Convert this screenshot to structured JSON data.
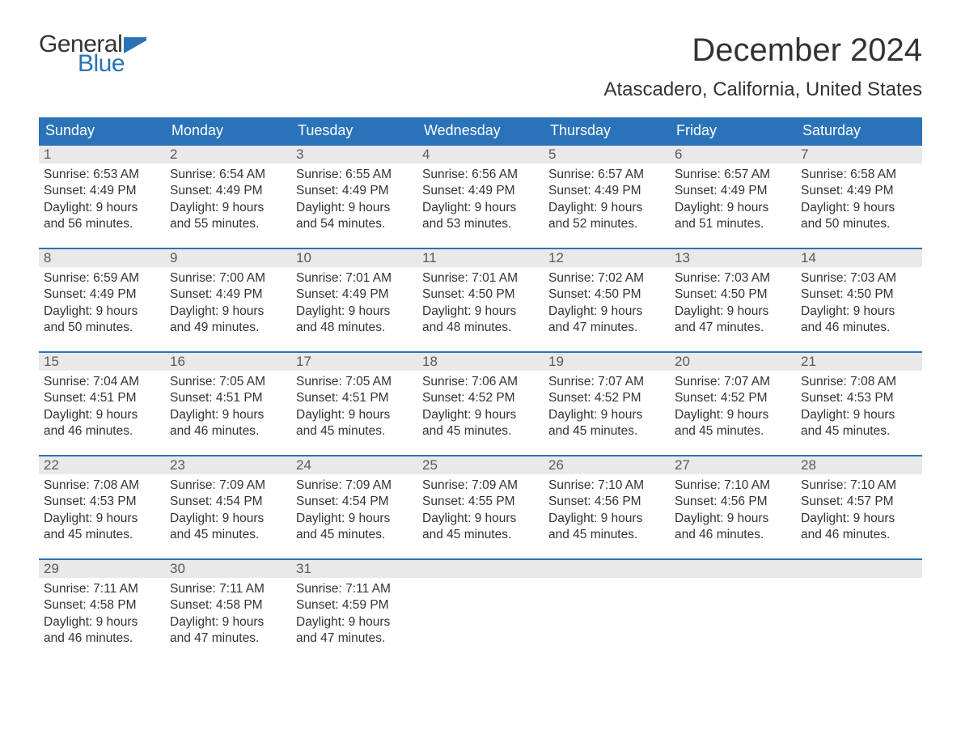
{
  "logo": {
    "word1": "General",
    "word2": "Blue",
    "text_color": "#333333",
    "blue_color": "#2a73b8"
  },
  "title": "December 2024",
  "location": "Atascadero, California, United States",
  "colors": {
    "header_bg": "#2a73b8",
    "header_text": "#ffffff",
    "daynum_bg": "#e9e9e9",
    "daynum_text": "#5a5a5a",
    "border": "#2a73b8",
    "body_text": "#333333",
    "page_bg": "#ffffff"
  },
  "typography": {
    "title_fontsize": 40,
    "location_fontsize": 24,
    "header_fontsize": 18,
    "body_fontsize": 15.5
  },
  "weekdays": [
    "Sunday",
    "Monday",
    "Tuesday",
    "Wednesday",
    "Thursday",
    "Friday",
    "Saturday"
  ],
  "labels": {
    "sunrise": "Sunrise:",
    "sunset": "Sunset:",
    "daylight_prefix": "Daylight:",
    "hours_word": "hours",
    "and_word": "and",
    "minutes_word": "minutes."
  },
  "days": [
    {
      "n": 1,
      "sunrise": "6:53 AM",
      "sunset": "4:49 PM",
      "dl_h": 9,
      "dl_m": 56
    },
    {
      "n": 2,
      "sunrise": "6:54 AM",
      "sunset": "4:49 PM",
      "dl_h": 9,
      "dl_m": 55
    },
    {
      "n": 3,
      "sunrise": "6:55 AM",
      "sunset": "4:49 PM",
      "dl_h": 9,
      "dl_m": 54
    },
    {
      "n": 4,
      "sunrise": "6:56 AM",
      "sunset": "4:49 PM",
      "dl_h": 9,
      "dl_m": 53
    },
    {
      "n": 5,
      "sunrise": "6:57 AM",
      "sunset": "4:49 PM",
      "dl_h": 9,
      "dl_m": 52
    },
    {
      "n": 6,
      "sunrise": "6:57 AM",
      "sunset": "4:49 PM",
      "dl_h": 9,
      "dl_m": 51
    },
    {
      "n": 7,
      "sunrise": "6:58 AM",
      "sunset": "4:49 PM",
      "dl_h": 9,
      "dl_m": 50
    },
    {
      "n": 8,
      "sunrise": "6:59 AM",
      "sunset": "4:49 PM",
      "dl_h": 9,
      "dl_m": 50
    },
    {
      "n": 9,
      "sunrise": "7:00 AM",
      "sunset": "4:49 PM",
      "dl_h": 9,
      "dl_m": 49
    },
    {
      "n": 10,
      "sunrise": "7:01 AM",
      "sunset": "4:49 PM",
      "dl_h": 9,
      "dl_m": 48
    },
    {
      "n": 11,
      "sunrise": "7:01 AM",
      "sunset": "4:50 PM",
      "dl_h": 9,
      "dl_m": 48
    },
    {
      "n": 12,
      "sunrise": "7:02 AM",
      "sunset": "4:50 PM",
      "dl_h": 9,
      "dl_m": 47
    },
    {
      "n": 13,
      "sunrise": "7:03 AM",
      "sunset": "4:50 PM",
      "dl_h": 9,
      "dl_m": 47
    },
    {
      "n": 14,
      "sunrise": "7:03 AM",
      "sunset": "4:50 PM",
      "dl_h": 9,
      "dl_m": 46
    },
    {
      "n": 15,
      "sunrise": "7:04 AM",
      "sunset": "4:51 PM",
      "dl_h": 9,
      "dl_m": 46
    },
    {
      "n": 16,
      "sunrise": "7:05 AM",
      "sunset": "4:51 PM",
      "dl_h": 9,
      "dl_m": 46
    },
    {
      "n": 17,
      "sunrise": "7:05 AM",
      "sunset": "4:51 PM",
      "dl_h": 9,
      "dl_m": 45
    },
    {
      "n": 18,
      "sunrise": "7:06 AM",
      "sunset": "4:52 PM",
      "dl_h": 9,
      "dl_m": 45
    },
    {
      "n": 19,
      "sunrise": "7:07 AM",
      "sunset": "4:52 PM",
      "dl_h": 9,
      "dl_m": 45
    },
    {
      "n": 20,
      "sunrise": "7:07 AM",
      "sunset": "4:52 PM",
      "dl_h": 9,
      "dl_m": 45
    },
    {
      "n": 21,
      "sunrise": "7:08 AM",
      "sunset": "4:53 PM",
      "dl_h": 9,
      "dl_m": 45
    },
    {
      "n": 22,
      "sunrise": "7:08 AM",
      "sunset": "4:53 PM",
      "dl_h": 9,
      "dl_m": 45
    },
    {
      "n": 23,
      "sunrise": "7:09 AM",
      "sunset": "4:54 PM",
      "dl_h": 9,
      "dl_m": 45
    },
    {
      "n": 24,
      "sunrise": "7:09 AM",
      "sunset": "4:54 PM",
      "dl_h": 9,
      "dl_m": 45
    },
    {
      "n": 25,
      "sunrise": "7:09 AM",
      "sunset": "4:55 PM",
      "dl_h": 9,
      "dl_m": 45
    },
    {
      "n": 26,
      "sunrise": "7:10 AM",
      "sunset": "4:56 PM",
      "dl_h": 9,
      "dl_m": 45
    },
    {
      "n": 27,
      "sunrise": "7:10 AM",
      "sunset": "4:56 PM",
      "dl_h": 9,
      "dl_m": 46
    },
    {
      "n": 28,
      "sunrise": "7:10 AM",
      "sunset": "4:57 PM",
      "dl_h": 9,
      "dl_m": 46
    },
    {
      "n": 29,
      "sunrise": "7:11 AM",
      "sunset": "4:58 PM",
      "dl_h": 9,
      "dl_m": 46
    },
    {
      "n": 30,
      "sunrise": "7:11 AM",
      "sunset": "4:58 PM",
      "dl_h": 9,
      "dl_m": 47
    },
    {
      "n": 31,
      "sunrise": "7:11 AM",
      "sunset": "4:59 PM",
      "dl_h": 9,
      "dl_m": 47
    }
  ],
  "start_weekday": 0,
  "weeks": 5
}
